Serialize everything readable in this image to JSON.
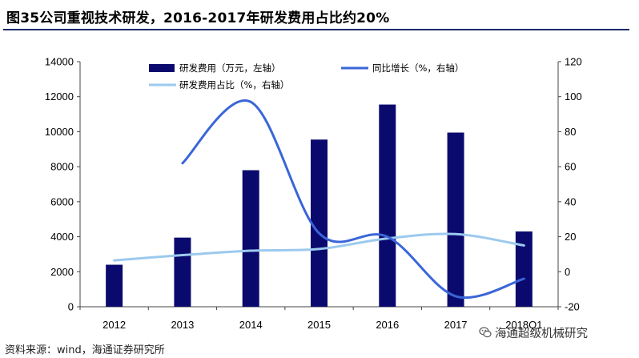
{
  "title": "图35公司重视技术研发，2016-2017年研发费用占比约20%",
  "source": "资料来源：wind，海通证券研究所",
  "watermark": "海通超级机械研究",
  "watermark_icon": "wechat-icon",
  "colors": {
    "bar": "#0a0a6e",
    "growth_line": "#3a66d8",
    "ratio_line": "#9cc9ee",
    "title_rule": "#1a2a6c"
  },
  "chart_data": {
    "type": "bar",
    "categories": [
      "2012",
      "2013",
      "2014",
      "2015",
      "2016",
      "2017",
      "2018Q1"
    ],
    "y_left": {
      "ticks": [
        "0",
        "2000",
        "4000",
        "6000",
        "8000",
        "10000",
        "12000",
        "14000"
      ],
      "range": [
        0,
        14000
      ]
    },
    "y_right": {
      "ticks": [
        "-20",
        "0",
        "20",
        "40",
        "60",
        "80",
        "100",
        "120"
      ],
      "range": [
        -20,
        120
      ]
    },
    "legend": {
      "position": "top",
      "entries": [
        "研发费用（万元，左轴）",
        "同比增长（%，右轴）",
        "研发费用占比（%，右轴）"
      ]
    },
    "series": [
      {
        "name": "研发费用（万元，左轴）",
        "kind": "bar",
        "axis": "left",
        "values": [
          2400,
          3950,
          7800,
          9550,
          11550,
          9950,
          4300
        ]
      },
      {
        "name": "同比增长（%，右轴）",
        "kind": "smooth-line",
        "axis": "right",
        "values": [
          null,
          62,
          97,
          22,
          20,
          -14,
          -4
        ]
      },
      {
        "name": "研发费用占比（%，右轴）",
        "kind": "smooth-line",
        "axis": "right",
        "values": [
          6.5,
          9.5,
          12,
          13,
          19,
          21.5,
          15
        ]
      }
    ]
  }
}
